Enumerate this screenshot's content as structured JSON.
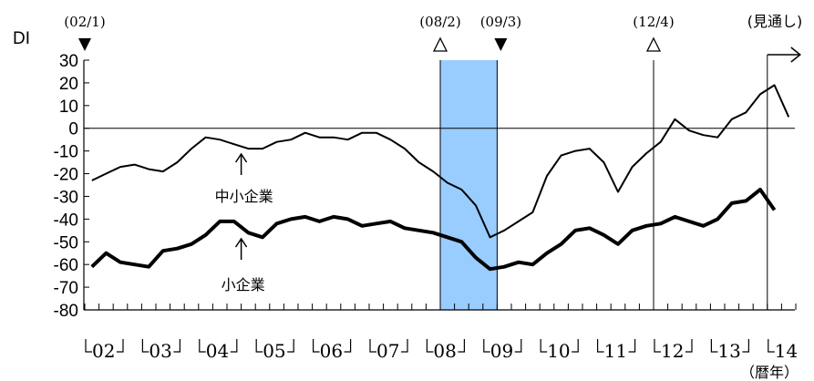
{
  "chart_data": {
    "type": "line",
    "ylabel": "DI",
    "xlabel": "（暦年）",
    "ylim": [
      -80,
      30
    ],
    "yticks": [
      30,
      20,
      10,
      0,
      -10,
      -20,
      -30,
      -40,
      -50,
      -60,
      -70,
      -80
    ],
    "x_tick_labels": [
      "02",
      "03",
      "04",
      "05",
      "06",
      "07",
      "08",
      "09",
      "10",
      "11",
      "12",
      "13",
      "14"
    ],
    "quarters_x": [
      "02Q1",
      "02Q2",
      "02Q3",
      "02Q4",
      "03Q1",
      "03Q2",
      "03Q3",
      "03Q4",
      "04Q1",
      "04Q2",
      "04Q3",
      "04Q4",
      "05Q1",
      "05Q2",
      "05Q3",
      "05Q4",
      "06Q1",
      "06Q2",
      "06Q3",
      "06Q4",
      "07Q1",
      "07Q2",
      "07Q3",
      "07Q4",
      "08Q1",
      "08Q2",
      "08Q3",
      "08Q4",
      "09Q1",
      "09Q2",
      "09Q3",
      "09Q4",
      "10Q1",
      "10Q2",
      "10Q3",
      "10Q4",
      "11Q1",
      "11Q2",
      "11Q3",
      "11Q4",
      "12Q1",
      "12Q2",
      "12Q3",
      "12Q4",
      "13Q1",
      "13Q2",
      "13Q3",
      "13Q4",
      "14Q1",
      "14Q2"
    ],
    "series": [
      {
        "name": "中小企業",
        "stroke": "#000000",
        "line_width": "thin",
        "values": [
          -23,
          -20,
          -17,
          -16,
          -18,
          -19,
          -15,
          -9,
          -4,
          -5,
          -7,
          -9,
          -9,
          -6,
          -5,
          -2,
          -4,
          -4,
          -5,
          -2,
          -2,
          -5,
          -9,
          -15,
          -19,
          -24,
          -27,
          -34,
          -48,
          -45,
          -41,
          -37,
          -21,
          -12,
          -10,
          -9,
          -15,
          -28,
          -17,
          -11,
          -6,
          4,
          -1,
          -3,
          -4,
          4,
          7,
          15,
          19,
          5
        ]
      },
      {
        "name": "小企業",
        "stroke": "#000000",
        "line_width": "thick",
        "values": [
          -61,
          -55,
          -59,
          -60,
          -61,
          -54,
          -53,
          -51,
          -47,
          -41,
          -41,
          -46,
          -48,
          -42,
          -40,
          -39,
          -41,
          -39,
          -40,
          -43,
          -42,
          -41,
          -44,
          -45,
          -46,
          -48,
          -50,
          -57,
          -62,
          -61,
          -59,
          -60,
          -55,
          -51,
          -45,
          -44,
          -47,
          -51,
          -45,
          -43,
          -42,
          -39,
          -41,
          -43,
          -40,
          -33,
          -32,
          -27,
          -36,
          null
        ]
      }
    ],
    "shaded_period": {
      "from": "08Q2",
      "to": "09Q1",
      "color": "#99ccff"
    },
    "turning_points": [
      {
        "label": "(02/1)",
        "x": "02Q1",
        "marker": "▼"
      },
      {
        "label": "(08/2)",
        "x": "08Q2",
        "marker": "△"
      },
      {
        "label": "(09/3)",
        "x": "09Q1",
        "marker": "▼"
      },
      {
        "label": "(12/4)",
        "x": "12Q1",
        "marker": "△"
      }
    ],
    "forecast": {
      "label": "(見通し)",
      "x": "13Q4"
    },
    "annotations": [
      {
        "text": "中小企業",
        "x": "04Q4",
        "series": "中小企業"
      },
      {
        "text": "小企業",
        "x": "04Q4",
        "series": "小企業"
      }
    ],
    "zero_line": true,
    "grid": false
  }
}
